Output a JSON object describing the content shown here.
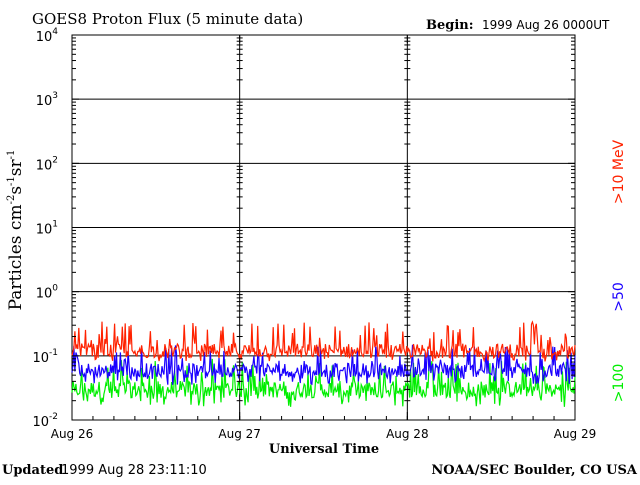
{
  "header": {
    "title": "GOES8 Proton Flux (5 minute data)",
    "begin_label": "Begin:",
    "begin_value": "1999 Aug 26 0000UT"
  },
  "footer": {
    "updated_label": "Updated",
    "updated_value": "1999 Aug 28 23:11:10",
    "credit": "NOAA/SEC Boulder, CO USA"
  },
  "chart_data": {
    "type": "line",
    "title": "GOES8 Proton Flux (5 minute data)",
    "xlabel": "Universal Time",
    "ylabel": {
      "base": "Particles cm",
      "e1": "-2",
      "mid1": "s",
      "e2": "-1",
      "mid2": "sr",
      "e3": "-1"
    },
    "y_scale": "log",
    "ylim": [
      0.01,
      10000
    ],
    "y_ticks": [
      {
        "base": "10",
        "exp": "4"
      },
      {
        "base": "10",
        "exp": "3"
      },
      {
        "base": "10",
        "exp": "2"
      },
      {
        "base": "10",
        "exp": "1"
      },
      {
        "base": "10",
        "exp": "0"
      },
      {
        "base": "10",
        "exp": "-1"
      },
      {
        "base": "10",
        "exp": "-2"
      }
    ],
    "x_ticks": [
      "Aug 26",
      "Aug 27",
      "Aug 28",
      "Aug 29"
    ],
    "xlim_days": [
      26,
      29
    ],
    "grid": true,
    "series": [
      {
        "name": ">10 MeV",
        "color": "#ff2200",
        "typical": 0.12,
        "low": 0.08,
        "high": 0.35
      },
      {
        "name": ">50",
        "color": "#1a00ff",
        "typical": 0.06,
        "low": 0.035,
        "high": 0.15
      },
      {
        "name": ">100",
        "color": "#00ee00",
        "typical": 0.03,
        "low": 0.016,
        "high": 0.09
      }
    ]
  }
}
